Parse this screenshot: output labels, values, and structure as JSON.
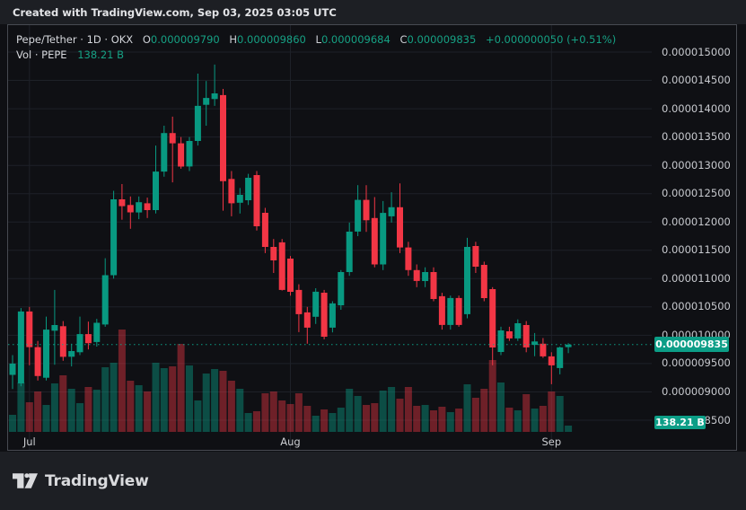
{
  "header": {
    "attribution": "Created with TradingView.com, Sep 03, 2025 03:05 UTC"
  },
  "legend": {
    "symbol_title": "Pepe/Tether · 1D · OKX",
    "open_label": "O",
    "open_value": "0.000009790",
    "high_label": "H",
    "high_value": "0.000009860",
    "low_label": "L",
    "low_value": "0.000009684",
    "close_label": "C",
    "close_value": "0.000009835",
    "change_text": "+0.000000050 (+0.51%)",
    "volume_label": "Vol · PEPE",
    "volume_value": "138.21 B"
  },
  "price_axis": {
    "labels": [
      "0.000015000",
      "0.000014500",
      "0.000014000",
      "0.000013500",
      "0.000013000",
      "0.000012500",
      "0.000012000",
      "0.000011500",
      "0.000011000",
      "0.000010500",
      "0.000010000",
      "0.000009500",
      "0.000009000",
      "0.000008500"
    ],
    "current_price_badge": "0.000009835",
    "current_volume_badge": "138.21 B"
  },
  "time_axis": {
    "labels": [
      {
        "text": "Jul",
        "candle_index": 2
      },
      {
        "text": "Aug",
        "candle_index": 33
      },
      {
        "text": "Sep",
        "candle_index": 64
      }
    ]
  },
  "footer": {
    "brand": "TradingView"
  },
  "colors": {
    "up": "#089981",
    "down": "#f23645",
    "volume_up": "rgba(8,153,129,0.45)",
    "volume_down": "rgba(242,54,69,0.42)",
    "badge_bg": "#0c9e87",
    "grid": "#1e2128",
    "dotted_price_line": "#0c9e85"
  },
  "chart_data": {
    "type": "candlestick_with_volume",
    "title": "Pepe/Tether",
    "interval": "1D",
    "exchange": "OKX",
    "price_scale_factor": 1e-09,
    "y_axis": {
      "min": 8500,
      "max": 15000,
      "tick_step": 500,
      "unit": "price x 1e-9 USDT"
    },
    "x_axis": {
      "month_ticks": [
        "Jul",
        "Aug",
        "Sep"
      ],
      "candle_count": 67
    },
    "current_price": 9835,
    "last_change": "+0.000000050 (+0.51%)",
    "last_volume_billion": 138.21,
    "candles_ohlc": [
      [
        9300,
        9650,
        9050,
        9500
      ],
      [
        9150,
        10480,
        9100,
        10420
      ],
      [
        10420,
        10500,
        9470,
        9790
      ],
      [
        9790,
        9900,
        9200,
        9280
      ],
      [
        9250,
        10330,
        9200,
        10100
      ],
      [
        10080,
        10800,
        9480,
        10180
      ],
      [
        10160,
        10250,
        9550,
        9620
      ],
      [
        9620,
        9850,
        9450,
        9720
      ],
      [
        9700,
        10330,
        9650,
        10020
      ],
      [
        10020,
        10240,
        9750,
        9860
      ],
      [
        9880,
        10290,
        9800,
        10220
      ],
      [
        10190,
        11360,
        10150,
        11060
      ],
      [
        11060,
        12550,
        11000,
        12400
      ],
      [
        12400,
        12670,
        12040,
        12280
      ],
      [
        12300,
        12450,
        11880,
        12170
      ],
      [
        12170,
        12450,
        12050,
        12350
      ],
      [
        12330,
        12430,
        12070,
        12210
      ],
      [
        12210,
        13350,
        12150,
        12890
      ],
      [
        12890,
        13700,
        12800,
        13570
      ],
      [
        13570,
        13860,
        12700,
        13390
      ],
      [
        13390,
        13500,
        12940,
        12980
      ],
      [
        12980,
        13500,
        12900,
        13430
      ],
      [
        13430,
        14620,
        13350,
        14050
      ],
      [
        14070,
        14490,
        13700,
        14190
      ],
      [
        14170,
        14780,
        14050,
        14270
      ],
      [
        14240,
        14350,
        12200,
        12720
      ],
      [
        12760,
        12900,
        12100,
        12330
      ],
      [
        12340,
        12600,
        12150,
        12480
      ],
      [
        12384,
        12850,
        12300,
        12780
      ],
      [
        12828,
        12900,
        11850,
        11925
      ],
      [
        12162,
        12250,
        11450,
        11560
      ],
      [
        11560,
        11700,
        11100,
        11322
      ],
      [
        11640,
        11700,
        10790,
        10800
      ],
      [
        11354,
        11400,
        10700,
        10768
      ],
      [
        10800,
        10900,
        10055,
        10372
      ],
      [
        10404,
        10500,
        9850,
        10134
      ],
      [
        10325,
        10830,
        10200,
        10768
      ],
      [
        10752,
        10800,
        9928,
        9975
      ],
      [
        10134,
        10600,
        10050,
        10562
      ],
      [
        10530,
        11150,
        10450,
        11116
      ],
      [
        11116,
        11990,
        11050,
        11830
      ],
      [
        11830,
        12650,
        11750,
        12390
      ],
      [
        12390,
        12650,
        11825,
        12030
      ],
      [
        12070,
        12440,
        11200,
        11250
      ],
      [
        11250,
        12370,
        11150,
        12160
      ],
      [
        12100,
        12525,
        11990,
        12260
      ],
      [
        12260,
        12680,
        11450,
        11550
      ],
      [
        11550,
        11650,
        11050,
        11150
      ],
      [
        11150,
        11250,
        10850,
        10958
      ],
      [
        10958,
        11200,
        10850,
        11116
      ],
      [
        11116,
        11200,
        10600,
        10641
      ],
      [
        10689,
        10750,
        10100,
        10182
      ],
      [
        10182,
        10700,
        10100,
        10657
      ],
      [
        10657,
        10700,
        10150,
        10182
      ],
      [
        10372,
        11720,
        10300,
        11560
      ],
      [
        11576,
        11650,
        11100,
        11211
      ],
      [
        11243,
        11300,
        10600,
        10657
      ],
      [
        10815,
        10850,
        9470,
        9785
      ],
      [
        9706,
        10150,
        9650,
        10086
      ],
      [
        10070,
        10150,
        9900,
        9944
      ],
      [
        9944,
        10280,
        9900,
        10212
      ],
      [
        10180,
        10250,
        9700,
        9785
      ],
      [
        9830,
        10040,
        9630,
        9890
      ],
      [
        9850,
        9950,
        9600,
        9627
      ],
      [
        9627,
        9700,
        9135,
        9468
      ],
      [
        9421,
        9800,
        9310,
        9785
      ],
      [
        9790,
        9860,
        9684,
        9835
      ]
    ],
    "volumes_billion": [
      375,
      1086,
      652,
      889,
      593,
      1067,
      1244,
      948,
      632,
      988,
      928,
      1422,
      1521,
      2252,
      1126,
      1027,
      889,
      1521,
      1402,
      1442,
      1936,
      1462,
      691,
      1284,
      1383,
      1343,
      1126,
      948,
      415,
      454,
      849,
      889,
      691,
      612,
      849,
      573,
      356,
      494,
      415,
      533,
      948,
      790,
      593,
      632,
      909,
      988,
      731,
      988,
      573,
      593,
      474,
      553,
      435,
      514,
      1047,
      751,
      948,
      1580,
      1086,
      533,
      474,
      830,
      514,
      573,
      889,
      790,
      138.21
    ]
  }
}
